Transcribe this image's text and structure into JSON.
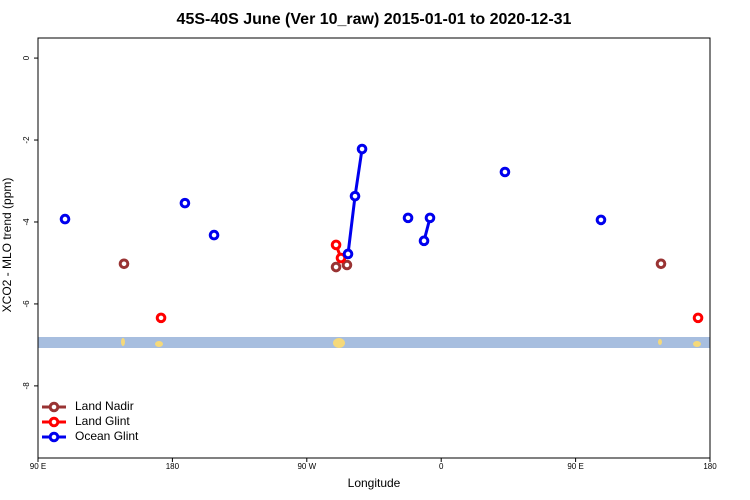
{
  "chart_data": {
    "type": "line",
    "title": "45S-40S June (Ver 10_raw)   2015-01-01 to 2020-12-31",
    "x_label": "Longitude",
    "y_label": "XCO2 - MLO trend (ppm)",
    "xlim": [
      90,
      540
    ],
    "ylim": [
      -9.76,
      0.49
    ],
    "xticks": [
      {
        "value": 90,
        "label": "90 E"
      },
      180,
      {
        "value": 270,
        "label": "90 W"
      },
      {
        "value": 360,
        "label": "0"
      },
      {
        "value": 450,
        "label": "90 E"
      },
      {
        "value": 540,
        "label": "180"
      }
    ],
    "yticks": [
      0,
      -2,
      -4,
      -6,
      -8
    ],
    "legend": "bottom-left",
    "series": [
      {
        "name": "Land Nadir",
        "color": "#993333",
        "x": [
          147.6,
          null,
          289.6,
          null,
          296.9,
          null,
          507.2
        ],
        "values": [
          -5.02,
          null,
          -5.1,
          null,
          -5.05,
          null,
          -5.02
        ]
      },
      {
        "name": "Land Glint",
        "color": "#ff0000",
        "x": [
          172.4,
          null,
          289.6,
          292.9,
          null,
          532
        ],
        "values": [
          -6.34,
          null,
          -4.56,
          -4.88,
          null,
          -6.34
        ]
      },
      {
        "name": "Ocean Glint",
        "color": "#0000ee",
        "x": [
          108.1,
          null,
          188.4,
          null,
          207.9,
          null,
          297.6,
          302.3,
          307,
          null,
          337.8,
          null,
          348.5,
          352.5,
          null,
          402.7,
          null,
          467
        ],
        "values": [
          -3.93,
          null,
          -3.54,
          null,
          -4.32,
          null,
          -4.78,
          -3.37,
          -2.22,
          null,
          -3.9,
          null,
          -4.46,
          -3.9,
          null,
          -2.78,
          null,
          -3.95
        ]
      }
    ]
  }
}
